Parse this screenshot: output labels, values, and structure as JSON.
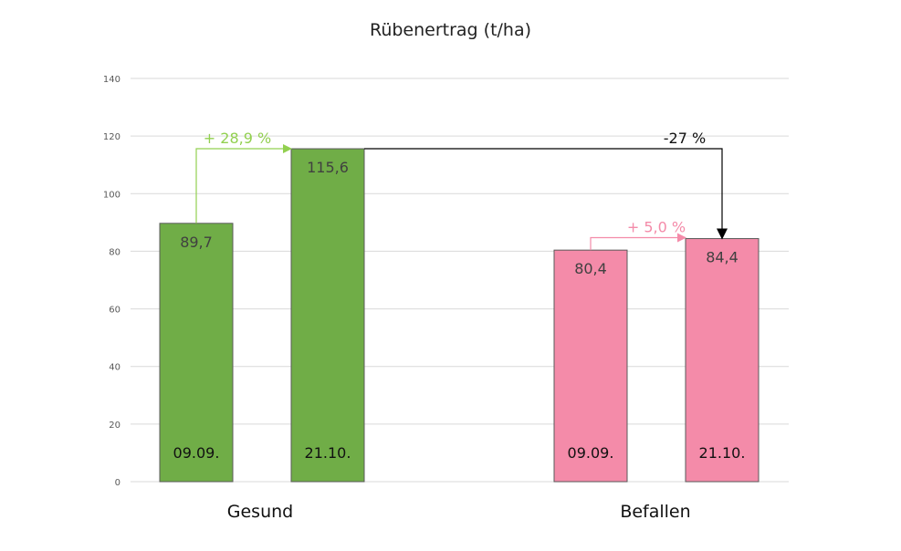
{
  "chart_data": {
    "type": "bar",
    "title": "Rübenertrag (t/ha)",
    "xlabel": "",
    "ylabel": "",
    "ylim": [
      0,
      140
    ],
    "yticks": [
      "0",
      "20",
      "40",
      "60",
      "80",
      "100",
      "120",
      "140"
    ],
    "grid": true,
    "legend": "none",
    "groups": [
      {
        "name": "Gesund",
        "color": "#70AD47",
        "bars": [
          {
            "date": "09.09.",
            "value": 89.7,
            "label": "89,7"
          },
          {
            "date": "21.10.",
            "value": 115.6,
            "label": "115,6"
          }
        ],
        "change_label": "+ 28,9 %",
        "change_color": "#92D050"
      },
      {
        "name": "Befallen",
        "color": "#F48BA9",
        "bars": [
          {
            "date": "09.09.",
            "value": 80.4,
            "label": "80,4"
          },
          {
            "date": "21.10.",
            "value": 84.4,
            "label": "84,4"
          }
        ],
        "change_label": "+ 5,0 %",
        "change_color": "#F48BA9"
      }
    ],
    "comparison": {
      "label": "-27 %",
      "color": "#000000"
    }
  }
}
